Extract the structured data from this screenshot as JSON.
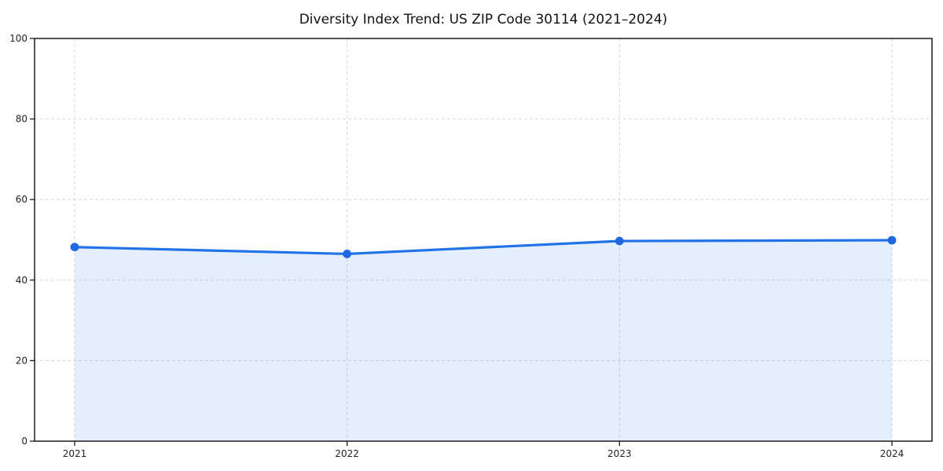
{
  "chart_data": {
    "type": "line",
    "title": "Diversity Index Trend: US ZIP Code 30114 (2021–2024)",
    "x": [
      "2021",
      "2022",
      "2023",
      "2024"
    ],
    "series": [
      {
        "name": "Diversity Index",
        "values": [
          48.2,
          46.5,
          49.7,
          49.9
        ]
      }
    ],
    "xlabel": "",
    "ylabel": "",
    "ylim": [
      0,
      100
    ],
    "yticks": [
      0,
      20,
      40,
      60,
      80,
      100
    ],
    "grid": true,
    "grid_style": "dashed",
    "legend": "none",
    "area_fill": true,
    "markers": true,
    "colors": {
      "line": "#2272e8",
      "marker": "#2068df",
      "fill": "#2272e8",
      "fill_opacity": 0.12,
      "grid": "#d9d9d9",
      "frame": "#1c1c1c",
      "title": "#111111",
      "tick_label": "#222222"
    }
  }
}
